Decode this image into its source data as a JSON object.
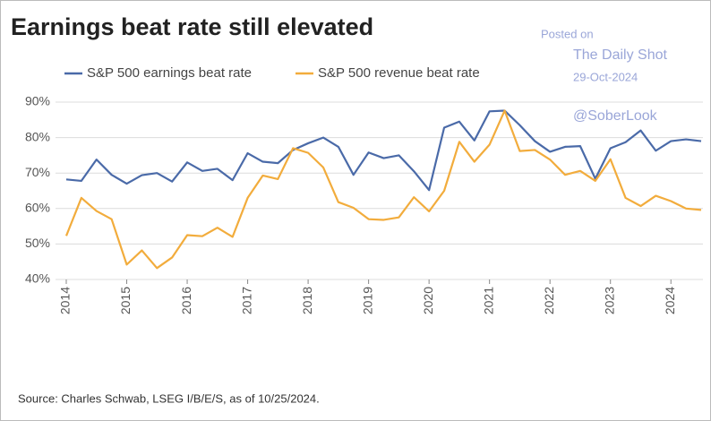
{
  "chart_data": {
    "type": "line",
    "title": "Earnings beat rate still elevated",
    "annotations": [
      "Posted on",
      "The Daily Shot",
      "29-Oct-2024",
      "@SoberLook"
    ],
    "source": "Source: Charles Schwab, LSEG I/B/E/S, as of 10/25/2024.",
    "x": [
      2014,
      2014.25,
      2014.5,
      2014.75,
      2015,
      2015.25,
      2015.5,
      2015.75,
      2016,
      2016.25,
      2016.5,
      2016.75,
      2017,
      2017.25,
      2017.5,
      2017.75,
      2018,
      2018.25,
      2018.5,
      2018.75,
      2019,
      2019.25,
      2019.5,
      2019.75,
      2020,
      2020.25,
      2020.5,
      2020.75,
      2021,
      2021.25,
      2021.5,
      2021.75,
      2022,
      2022.25,
      2022.5,
      2022.75,
      2023,
      2023.25,
      2023.5,
      2023.75,
      2024,
      2024.25,
      2024.5
    ],
    "series": [
      {
        "name": "S&P 500 earnings beat rate",
        "color": "#4a6aa8",
        "values": [
          68.2,
          67.8,
          73.8,
          69.5,
          67,
          69.4,
          70,
          67.6,
          73,
          70.6,
          71.2,
          68,
          75.6,
          73.2,
          72.8,
          76.5,
          78.4,
          80,
          77.4,
          69.5,
          75.8,
          74.2,
          75,
          70.5,
          65.2,
          82.8,
          84.5,
          79.2,
          87.4,
          87.6,
          83.5,
          79,
          76,
          77.4,
          77.6,
          68.4,
          77,
          78.7,
          82,
          76.3,
          79,
          79.5,
          79
        ]
      },
      {
        "name": "S&P 500 revenue beat rate",
        "color": "#f2ac3c",
        "values": [
          52.3,
          63,
          59.3,
          57,
          44.2,
          48.2,
          43.2,
          46.2,
          52.5,
          52.2,
          54.6,
          52,
          63,
          69.3,
          68.3,
          77,
          75.7,
          71.6,
          61.8,
          60.2,
          57,
          56.8,
          57.5,
          63.2,
          59.2,
          65,
          78.8,
          73.2,
          78,
          87.6,
          76.2,
          76.5,
          73.8,
          69.5,
          70.6,
          67.8,
          73.9,
          63,
          60.7,
          63.6,
          62.1,
          60,
          59.6
        ]
      }
    ],
    "xlim": [
      2014,
      2024.5
    ],
    "xticks": [
      2014,
      2015,
      2016,
      2017,
      2018,
      2019,
      2020,
      2021,
      2022,
      2023,
      2024
    ],
    "ylim": [
      40,
      90
    ],
    "yticks": [
      {
        "value": 40,
        "label": "40%"
      },
      {
        "value": 50,
        "label": "50%"
      },
      {
        "value": 60,
        "label": "60%"
      },
      {
        "value": 70,
        "label": "70%"
      },
      {
        "value": 80,
        "label": "80%"
      },
      {
        "value": 90,
        "label": "90%"
      }
    ],
    "grid": true
  }
}
